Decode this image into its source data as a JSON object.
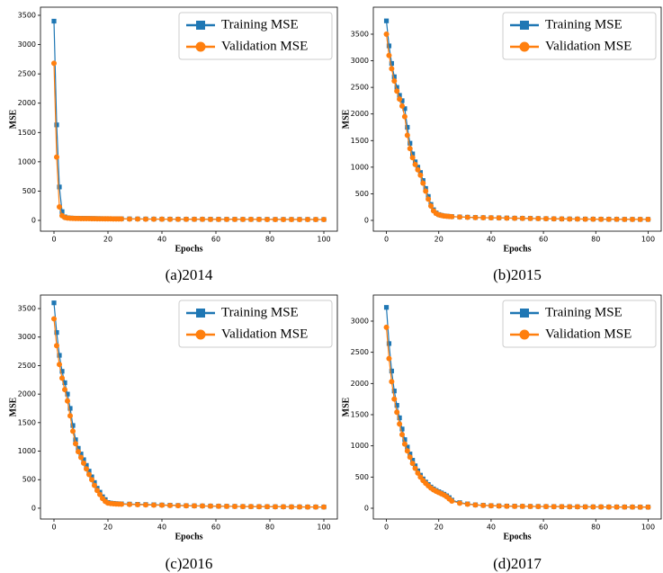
{
  "chart_data": [
    {
      "type": "line",
      "caption": "(a)2014",
      "xlabel": "Epochs",
      "ylabel": "MSE",
      "x": [
        0,
        1,
        2,
        3,
        4,
        5,
        6,
        7,
        8,
        9,
        10,
        11,
        12,
        13,
        14,
        15,
        16,
        17,
        18,
        19,
        20,
        21,
        22,
        23,
        24,
        25,
        28,
        31,
        34,
        37,
        40,
        43,
        46,
        49,
        52,
        55,
        58,
        61,
        64,
        67,
        70,
        73,
        76,
        79,
        82,
        85,
        88,
        91,
        94,
        97,
        100
      ],
      "xlim": [
        -5,
        105
      ],
      "xticks": [
        0,
        20,
        40,
        60,
        80,
        100
      ],
      "ylim": [
        -184,
        3638
      ],
      "yticks": [
        0,
        500,
        1000,
        1500,
        2000,
        2500,
        3000,
        3500
      ],
      "legend": "upper right",
      "series": [
        {
          "name": "Training MSE",
          "color": "#1f77b4",
          "marker": "square",
          "values": [
            3400,
            1630,
            570,
            150,
            60,
            45,
            40,
            38,
            36,
            35,
            34,
            34,
            33,
            33,
            32,
            32,
            31,
            31,
            30,
            30,
            30,
            29,
            29,
            28,
            28,
            27,
            26,
            25,
            24,
            23,
            22,
            22,
            21,
            21,
            20,
            20,
            20,
            19,
            19,
            19,
            18,
            18,
            18,
            18,
            17,
            17,
            17,
            17,
            17,
            16,
            16
          ]
        },
        {
          "name": "Validation MSE",
          "color": "#ff7f0e",
          "marker": "circle",
          "values": [
            2680,
            1080,
            230,
            80,
            50,
            40,
            36,
            34,
            33,
            32,
            31,
            31,
            30,
            30,
            29,
            29,
            28,
            28,
            28,
            27,
            27,
            27,
            26,
            26,
            25,
            25,
            24,
            23,
            22,
            21,
            21,
            20,
            20,
            19,
            19,
            19,
            18,
            18,
            18,
            17,
            17,
            17,
            17,
            16,
            16,
            16,
            16,
            15,
            15,
            15,
            15
          ]
        }
      ]
    },
    {
      "type": "line",
      "caption": "(b)2015",
      "xlabel": "Epochs",
      "ylabel": "MSE",
      "x": [
        0,
        1,
        2,
        3,
        4,
        5,
        6,
        7,
        8,
        9,
        10,
        11,
        12,
        13,
        14,
        15,
        16,
        17,
        18,
        19,
        20,
        21,
        22,
        23,
        24,
        25,
        28,
        31,
        34,
        37,
        40,
        43,
        46,
        49,
        52,
        55,
        58,
        61,
        64,
        67,
        70,
        73,
        76,
        79,
        82,
        85,
        88,
        91,
        94,
        97,
        100
      ],
      "xlim": [
        -5,
        105
      ],
      "xticks": [
        0,
        20,
        40,
        60,
        80,
        100
      ],
      "ylim": [
        -203,
        4007
      ],
      "yticks": [
        0,
        500,
        1000,
        1500,
        2000,
        2500,
        3000,
        3500
      ],
      "legend": "upper right",
      "series": [
        {
          "name": "Training MSE",
          "color": "#1f77b4",
          "marker": "square",
          "values": [
            3750,
            3280,
            2950,
            2700,
            2500,
            2350,
            2250,
            2100,
            1750,
            1450,
            1250,
            1100,
            1000,
            900,
            750,
            600,
            450,
            300,
            200,
            140,
            110,
            95,
            85,
            80,
            75,
            72,
            65,
            60,
            55,
            52,
            50,
            48,
            45,
            42,
            40,
            38,
            35,
            33,
            30,
            28,
            27,
            26,
            25,
            24,
            23,
            22,
            21,
            20,
            20,
            19,
            19
          ]
        },
        {
          "name": "Validation MSE",
          "color": "#ff7f0e",
          "marker": "circle",
          "values": [
            3500,
            3100,
            2850,
            2620,
            2430,
            2280,
            2150,
            1950,
            1600,
            1350,
            1180,
            1050,
            950,
            850,
            700,
            550,
            400,
            270,
            180,
            130,
            105,
            92,
            83,
            78,
            73,
            70,
            63,
            58,
            53,
            50,
            48,
            46,
            43,
            40,
            38,
            36,
            33,
            31,
            29,
            27,
            26,
            25,
            24,
            23,
            22,
            21,
            20,
            19,
            19,
            18,
            18
          ]
        }
      ]
    },
    {
      "type": "line",
      "caption": "(c)2016",
      "xlabel": "Epochs",
      "ylabel": "MSE",
      "x": [
        0,
        1,
        2,
        3,
        4,
        5,
        6,
        7,
        8,
        9,
        10,
        11,
        12,
        13,
        14,
        15,
        16,
        17,
        18,
        19,
        20,
        21,
        22,
        23,
        24,
        25,
        28,
        31,
        34,
        37,
        40,
        43,
        46,
        49,
        52,
        55,
        58,
        61,
        64,
        67,
        70,
        73,
        76,
        79,
        82,
        85,
        88,
        91,
        94,
        97,
        100
      ],
      "xlim": [
        -5,
        105
      ],
      "xticks": [
        0,
        20,
        40,
        60,
        80,
        100
      ],
      "ylim": [
        -190,
        3737
      ],
      "yticks": [
        0,
        500,
        1000,
        1500,
        2000,
        2500,
        3000,
        3500
      ],
      "legend": "upper right",
      "series": [
        {
          "name": "Training MSE",
          "color": "#1f77b4",
          "marker": "square",
          "values": [
            3600,
            3080,
            2680,
            2400,
            2200,
            2000,
            1750,
            1450,
            1200,
            1050,
            950,
            850,
            750,
            650,
            550,
            450,
            350,
            280,
            200,
            150,
            100,
            90,
            85,
            80,
            78,
            76,
            72,
            68,
            64,
            60,
            56,
            52,
            48,
            45,
            42,
            40,
            38,
            36,
            34,
            32,
            30,
            29,
            28,
            27,
            26,
            25,
            24,
            23,
            22,
            22,
            21
          ]
        },
        {
          "name": "Validation MSE",
          "color": "#ff7f0e",
          "marker": "circle",
          "values": [
            3320,
            2850,
            2520,
            2280,
            2080,
            1880,
            1620,
            1350,
            1130,
            990,
            890,
            790,
            690,
            590,
            500,
            400,
            310,
            240,
            170,
            120,
            90,
            82,
            78,
            75,
            72,
            70,
            66,
            62,
            58,
            55,
            52,
            48,
            45,
            42,
            40,
            38,
            36,
            34,
            32,
            30,
            29,
            28,
            27,
            26,
            25,
            24,
            23,
            22,
            21,
            21,
            20
          ]
        }
      ]
    },
    {
      "type": "line",
      "caption": "(d)2017",
      "xlabel": "Epochs",
      "ylabel": "MSE",
      "x": [
        0,
        1,
        2,
        3,
        4,
        5,
        6,
        7,
        8,
        9,
        10,
        11,
        12,
        13,
        14,
        15,
        16,
        17,
        18,
        19,
        20,
        21,
        22,
        23,
        24,
        25,
        28,
        31,
        34,
        37,
        40,
        43,
        46,
        49,
        52,
        55,
        58,
        61,
        64,
        67,
        70,
        73,
        76,
        79,
        82,
        85,
        88,
        91,
        94,
        97,
        100
      ],
      "xlim": [
        -5,
        105
      ],
      "xticks": [
        0,
        20,
        40,
        60,
        80,
        100
      ],
      "ylim": [
        -173,
        3418
      ],
      "yticks": [
        0,
        500,
        1000,
        1500,
        2000,
        2500,
        3000
      ],
      "legend": "upper right",
      "series": [
        {
          "name": "Training MSE",
          "color": "#1f77b4",
          "marker": "square",
          "values": [
            3220,
            2640,
            2200,
            1880,
            1650,
            1450,
            1270,
            1100,
            980,
            870,
            770,
            680,
            600,
            530,
            470,
            420,
            380,
            340,
            310,
            285,
            265,
            245,
            225,
            200,
            170,
            130,
            90,
            70,
            55,
            48,
            42,
            38,
            35,
            33,
            31,
            30,
            29,
            28,
            27,
            26,
            25,
            24,
            23,
            22,
            22,
            21,
            21,
            20,
            20,
            19,
            19
          ]
        },
        {
          "name": "Validation MSE",
          "color": "#ff7f0e",
          "marker": "circle",
          "values": [
            2900,
            2400,
            2030,
            1750,
            1540,
            1350,
            1180,
            1030,
            920,
            820,
            720,
            640,
            565,
            500,
            445,
            400,
            360,
            325,
            295,
            272,
            253,
            233,
            213,
            185,
            150,
            115,
            82,
            65,
            52,
            45,
            40,
            36,
            33,
            31,
            30,
            29,
            28,
            27,
            26,
            25,
            24,
            23,
            22,
            21,
            21,
            20,
            20,
            19,
            19,
            18,
            18
          ]
        }
      ]
    }
  ]
}
